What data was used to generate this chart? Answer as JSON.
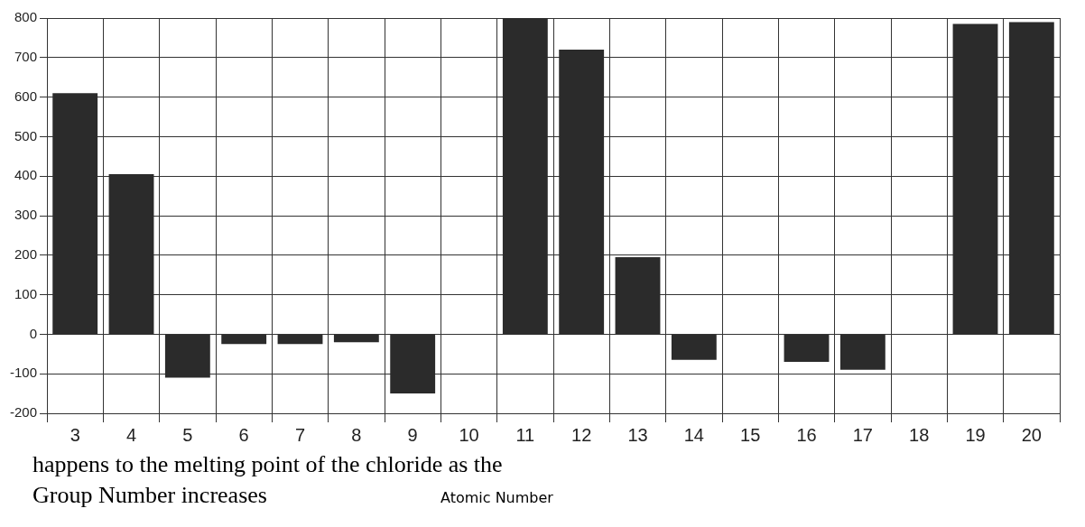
{
  "chart_data": {
    "type": "bar",
    "xlabel": "Atomic Number",
    "categories": [
      "3",
      "4",
      "5",
      "6",
      "7",
      "8",
      "9",
      "10",
      "11",
      "12",
      "13",
      "14",
      "15",
      "16",
      "17",
      "18",
      "19",
      "20"
    ],
    "values": [
      610,
      405,
      -110,
      -25,
      -25,
      -20,
      -150,
      null,
      800,
      720,
      195,
      -65,
      null,
      -70,
      -90,
      null,
      785,
      790
    ],
    "color": "#2b2b2b",
    "ylim": [
      -200,
      800
    ],
    "yticks": [
      -200,
      -100,
      0,
      100,
      200,
      300,
      400,
      500,
      600,
      700,
      800
    ],
    "grid": true,
    "legend": false,
    "annotations": [
      "happens to the melting point of the chloride as the",
      "Group Number increases"
    ]
  }
}
